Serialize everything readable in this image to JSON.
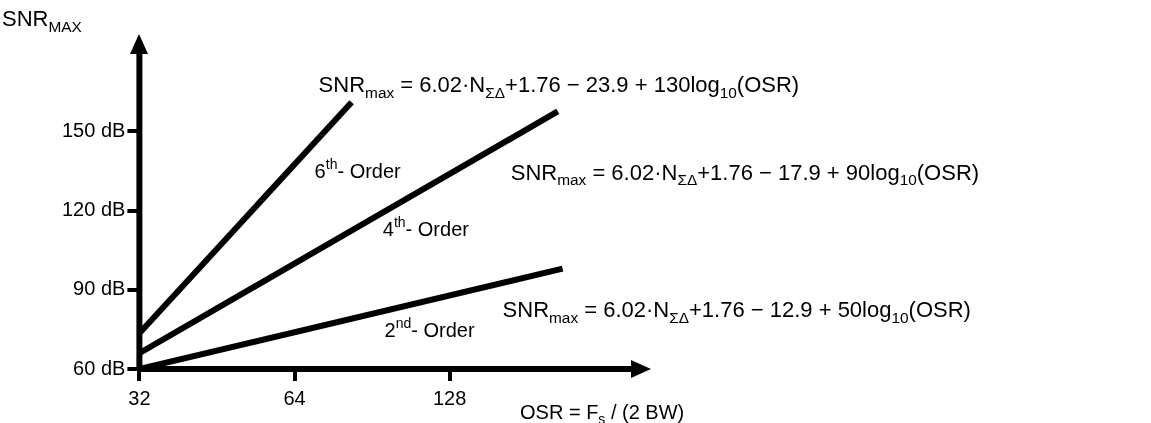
{
  "chart_data": {
    "type": "line",
    "xlabel": "OSR = F$_{s}$ / (2 BW)",
    "ylabel": "SNR$_{MAX}$",
    "log": "x",
    "xlim": [
      32,
      293
    ],
    "xticks": [
      32,
      64,
      128
    ],
    "ylim": [
      60,
      180
    ],
    "yticks": [
      {
        "value": 60,
        "label": "60 dB"
      },
      {
        "value": 90,
        "label": "90 dB"
      },
      {
        "value": 120,
        "label": "120 dB"
      },
      {
        "value": 150,
        "label": "150 dB"
      }
    ],
    "grid": false,
    "legend": false,
    "marker": "none",
    "line_style": "solid",
    "series": [
      {
        "name": "6$^{th}$- Order",
        "color": "#000000",
        "x": [
          32,
          82.6
        ],
        "values": [
          73.5,
          161
        ]
      },
      {
        "name": "4$^{th}$- Order",
        "color": "#000000",
        "x": [
          32,
          207.5
        ],
        "values": [
          66,
          157.5
        ]
      },
      {
        "name": "2$^{nd}$- Order",
        "color": "#000000",
        "x": [
          32,
          212
        ],
        "values": [
          60,
          98
        ]
      }
    ],
    "annotations": [
      "SNR$_{max}$ = 6.02·N$_{ΣΔ}$+1.76 − 23.9 + 130log$_{10}$(OSR)",
      "SNR$_{max}$ = 6.02·N$_{ΣΔ}$+1.76 − 17.9 + 90log$_{10}$(OSR)",
      "SNR$_{max}$ = 6.02·N$_{ΣΔ}$+1.76 − 12.9 + 50log$_{10}$(OSR)"
    ]
  }
}
